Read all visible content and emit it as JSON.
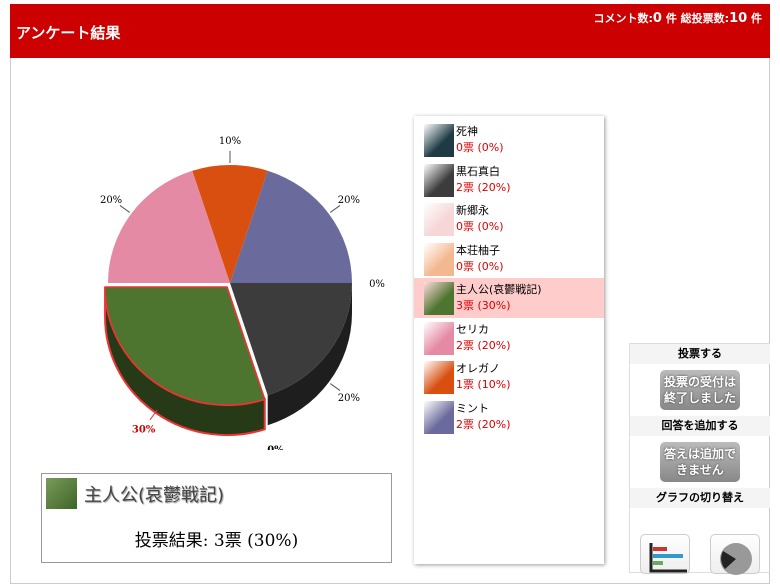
{
  "header": {
    "title": "アンケート結果",
    "comment_label": "コメント数:",
    "comment_count": "0",
    "comment_unit": "件",
    "total_label": "総投票数:",
    "total_count": "10",
    "total_unit": "件"
  },
  "chart_data": {
    "type": "pie",
    "series": [
      {
        "name": "死神",
        "votes": 0,
        "percent": 0,
        "label": "0%",
        "color": "#1e3a44"
      },
      {
        "name": "黒石真白",
        "votes": 2,
        "percent": 20,
        "label": "20%",
        "color": "#3c3c3c"
      },
      {
        "name": "新郷永",
        "votes": 0,
        "percent": 0,
        "label": "0%",
        "color": "#f6d6d6"
      },
      {
        "name": "本荘柚子",
        "votes": 0,
        "percent": 0,
        "label": "0%",
        "color": "#f4b890"
      },
      {
        "name": "主人公(哀鬱戦記)",
        "votes": 3,
        "percent": 30,
        "label": "30%",
        "color": "#4e7530"
      },
      {
        "name": "セリカ",
        "votes": 2,
        "percent": 20,
        "label": "20%",
        "color": "#e58aa4"
      },
      {
        "name": "オレガノ",
        "votes": 1,
        "percent": 10,
        "label": "10%",
        "color": "#d84f10"
      },
      {
        "name": "ミント",
        "votes": 2,
        "percent": 20,
        "label": "20%",
        "color": "#6a6a9c"
      }
    ]
  },
  "legend": [
    {
      "name": "死神",
      "votes": "0票 (0%)"
    },
    {
      "name": "黒石真白",
      "votes": "2票 (20%)"
    },
    {
      "name": "新郷永",
      "votes": "0票 (0%)"
    },
    {
      "name": "本荘柚子",
      "votes": "0票 (0%)"
    },
    {
      "name": "主人公(哀鬱戦記)",
      "votes": "3票 (30%)"
    },
    {
      "name": "セリカ",
      "votes": "2票 (20%)"
    },
    {
      "name": "オレガノ",
      "votes": "1票 (10%)"
    },
    {
      "name": "ミント",
      "votes": "2票 (20%)"
    }
  ],
  "selected": {
    "name": "主人公(哀鬱戦記)",
    "result": "投票結果: 3票 (30%)"
  },
  "sidebar": {
    "vote_heading": "投票する",
    "vote_closed": "投票の受付は終了しました",
    "add_heading": "回答を追加する",
    "add_closed": "答えは追加できません",
    "switch_heading": "グラフの切り替え"
  }
}
